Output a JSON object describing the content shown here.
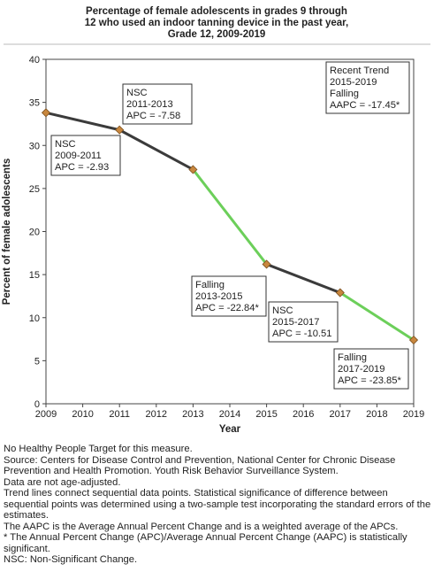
{
  "chart_data": {
    "type": "line",
    "title_lines": [
      "Percentage of female adolescents in grades 9 through",
      "12 who used an indoor tanning device in the past year,",
      "Grade 12,  2009-2019"
    ],
    "xlabel": "Year",
    "ylabel": "Percent of female adolescents",
    "xlim": [
      2009,
      2019
    ],
    "ylim": [
      0,
      40
    ],
    "xticks": [
      "2009",
      "2010",
      "2011",
      "2012",
      "2013",
      "2014",
      "2015",
      "2016",
      "2017",
      "2018",
      "2019"
    ],
    "yticks": [
      "0",
      "5",
      "10",
      "15",
      "20",
      "25",
      "30",
      "35",
      "40"
    ],
    "grid": false,
    "colors": {
      "nsc": "#3b3b3b",
      "falling": "#6ccf5a",
      "marker": "#c8873e"
    },
    "series": [
      {
        "x": [
          2009,
          2011,
          2013,
          2015,
          2017,
          2019
        ],
        "values": [
          33.8,
          31.8,
          27.2,
          16.2,
          12.9,
          7.4
        ]
      }
    ],
    "segments": [
      {
        "from": 2009,
        "to": 2011,
        "trend": "nsc"
      },
      {
        "from": 2011,
        "to": 2013,
        "trend": "nsc"
      },
      {
        "from": 2013,
        "to": 2015,
        "trend": "falling"
      },
      {
        "from": 2015,
        "to": 2017,
        "trend": "nsc"
      },
      {
        "from": 2017,
        "to": 2019,
        "trend": "falling"
      }
    ],
    "annotations": [
      {
        "lines": [
          "NSC",
          "2009-2011",
          "APC = -2.93"
        ]
      },
      {
        "lines": [
          "NSC",
          "2011-2013",
          "APC = -7.58"
        ]
      },
      {
        "lines": [
          "Falling",
          "2013-2015",
          "APC = -22.84*"
        ]
      },
      {
        "lines": [
          "NSC",
          "2015-2017",
          "APC = -10.51"
        ]
      },
      {
        "lines": [
          "Falling",
          "2017-2019",
          "APC = -23.85*"
        ]
      },
      {
        "lines": [
          "Recent Trend",
          "2015-2019",
          "Falling",
          "AAPC = -17.45*"
        ]
      }
    ]
  },
  "notes": [
    "No Healthy People Target for this measure.",
    "Source: Centers for Disease Control and Prevention, National Center for Chronic Disease Prevention and Health Promotion. Youth Risk Behavior Surveillance System.",
    "Data are not age-adjusted.",
    "Trend lines connect sequential data points. Statistical significance of difference between sequential points was determined using a two-sample test incorporating the standard errors of the estimates.",
    "The AAPC is the Average Annual Percent Change and is a weighted average of the APCs.",
    "* The Annual Percent Change (APC)/Average Annual Percent Change (AAPC) is statistically significant.",
    "NSC: Non-Significant Change."
  ]
}
